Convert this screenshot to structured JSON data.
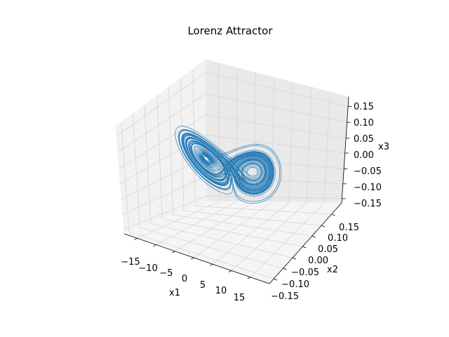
{
  "chart_data": {
    "type": "line",
    "projection": "3d",
    "title": "Lorenz Attractor",
    "xlabel": "x1",
    "ylabel": "x2",
    "zlabel": "x3",
    "x_ticks": [
      "−15",
      "−10",
      "−5",
      "0",
      "5",
      "10",
      "15"
    ],
    "y_ticks": [
      "−0.15",
      "−0.10",
      "−0.05",
      "0.00",
      "0.05",
      "0.10",
      "0.15"
    ],
    "z_ticks": [
      "−0.15",
      "−0.10",
      "−0.05",
      "0.00",
      "0.05",
      "0.10",
      "0.15"
    ],
    "xlim": [
      -19,
      19
    ],
    "ylim": [
      -0.17,
      0.17
    ],
    "zlim": [
      -0.17,
      0.17
    ],
    "grid": true,
    "series": [
      {
        "color": "#1f77b4",
        "linewidth": 0.7
      }
    ]
  }
}
